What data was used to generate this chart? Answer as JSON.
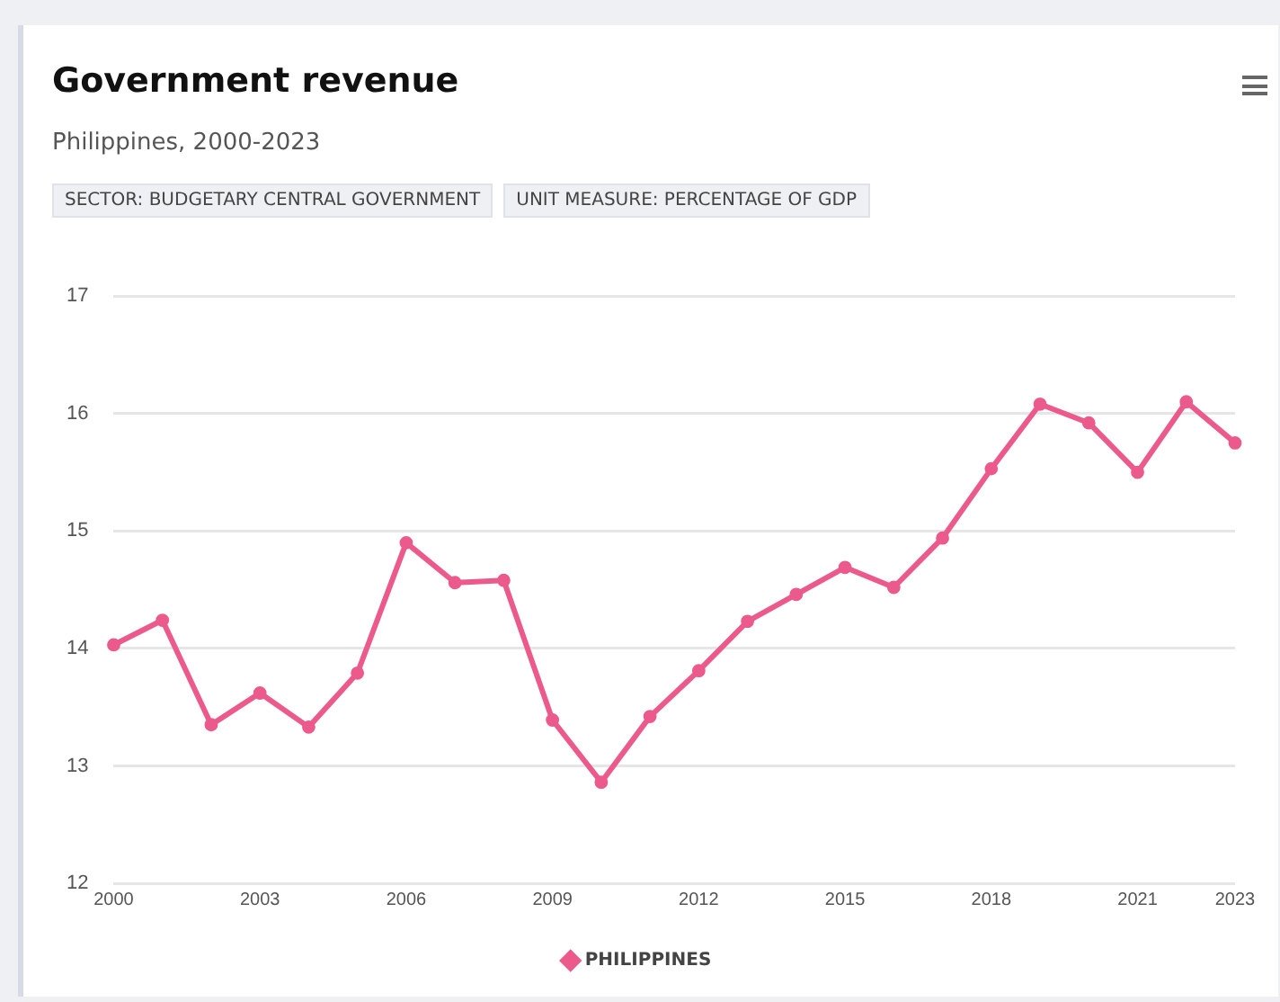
{
  "chart_data": {
    "type": "line",
    "title": "Government revenue",
    "subtitle": "Philippines, 2000-2023",
    "annotations": [
      "SECTOR: BUDGETARY CENTRAL GOVERNMENT",
      "UNIT MEASURE: PERCENTAGE OF GDP"
    ],
    "x": [
      2000,
      2001,
      2002,
      2003,
      2004,
      2005,
      2006,
      2007,
      2008,
      2009,
      2010,
      2011,
      2012,
      2013,
      2014,
      2015,
      2016,
      2017,
      2018,
      2019,
      2020,
      2021,
      2022,
      2023
    ],
    "series": [
      {
        "name": "PHILIPPINES",
        "color": "#ec5a8c",
        "values": [
          14.03,
          14.24,
          13.35,
          13.62,
          13.33,
          13.79,
          14.9,
          14.56,
          14.58,
          13.39,
          12.86,
          13.42,
          13.81,
          14.23,
          14.46,
          14.69,
          14.52,
          14.94,
          15.53,
          16.08,
          15.92,
          15.5,
          16.1,
          15.75
        ]
      }
    ],
    "xlim": [
      2000,
      2023
    ],
    "xticks": [
      2000,
      2003,
      2006,
      2009,
      2012,
      2015,
      2018,
      2021,
      2023
    ],
    "ylim": [
      12,
      17
    ],
    "yticks": [
      12,
      13,
      14,
      15,
      16,
      17
    ],
    "grid": "y",
    "legend": "bottom",
    "marker": "circle",
    "line_style": "solid"
  }
}
